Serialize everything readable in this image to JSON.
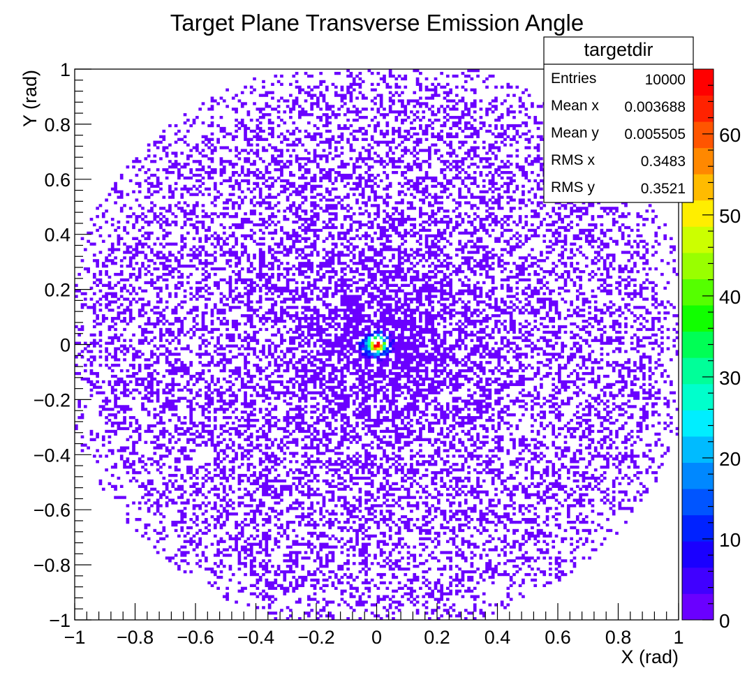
{
  "chart_data": {
    "type": "heatmap",
    "title": "Target Plane Transverse Emission Angle",
    "xlabel": "X (rad)",
    "ylabel": "Y (rad)",
    "xlim": [
      -1,
      1
    ],
    "ylim": [
      -1,
      1
    ],
    "x_ticks": [
      "−1",
      "−0.8",
      "−0.6",
      "−0.4",
      "−0.2",
      "0",
      "0.2",
      "0.4",
      "0.6",
      "0.8",
      "1"
    ],
    "y_ticks": [
      "−1",
      "−0.8",
      "−0.6",
      "−0.4",
      "−0.2",
      "0",
      "0.2",
      "0.4",
      "0.6",
      "0.8",
      "1"
    ],
    "bins": 200,
    "color_scale": {
      "min": 0,
      "max": 68,
      "ticks": [
        "0",
        "10",
        "20",
        "30",
        "40",
        "50",
        "60"
      ],
      "colors": [
        "#6a00ff",
        "#4000ff",
        "#1a00ff",
        "#0022ff",
        "#0055ff",
        "#0088ff",
        "#00bbff",
        "#00eeff",
        "#00ffcc",
        "#00ff99",
        "#00ff55",
        "#11ff00",
        "#55ff00",
        "#99ff00",
        "#ccff00",
        "#ffee00",
        "#ffbb00",
        "#ff8800",
        "#ff5500",
        "#ff2200",
        "#ff0000"
      ]
    },
    "grid": false,
    "peak": {
      "x": 0,
      "y": 0,
      "value": 68
    },
    "distribution": "dense central core at (0,0), roughly uniform low-count disk of radius ~1 rad",
    "stats_box": {
      "name": "targetdir",
      "rows": [
        {
          "label": "Entries",
          "value": "10000"
        },
        {
          "label": "Mean x",
          "value": "0.003688"
        },
        {
          "label": "Mean y",
          "value": "0.005505"
        },
        {
          "label": "RMS x",
          "value": "0.3483"
        },
        {
          "label": "RMS y",
          "value": "0.3521"
        }
      ]
    }
  }
}
